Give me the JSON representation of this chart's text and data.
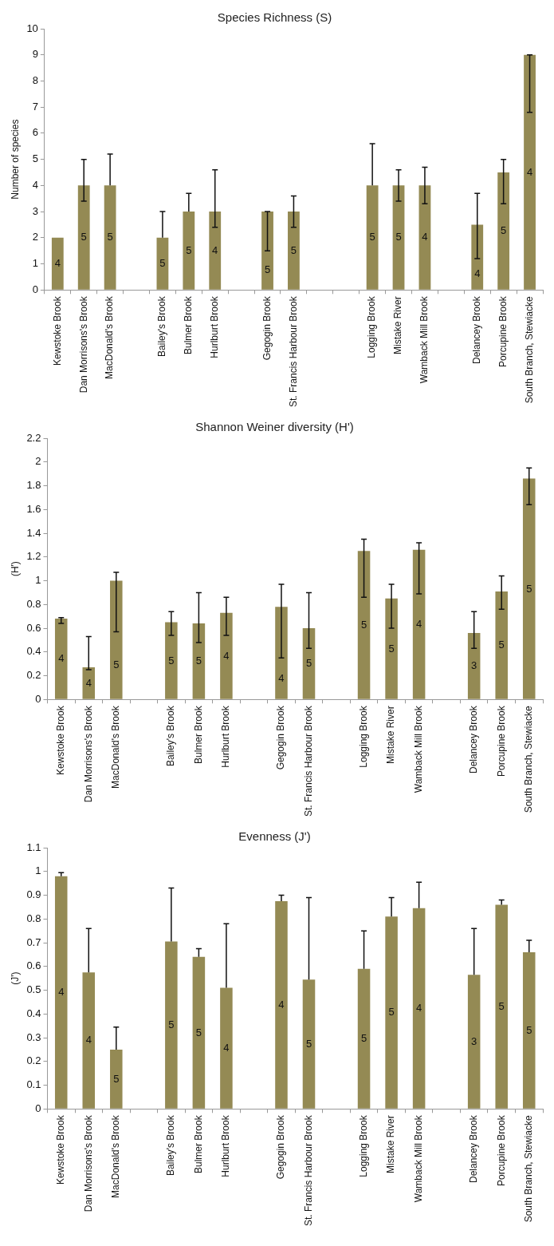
{
  "chart_data": [
    {
      "type": "bar",
      "title": "Species Richness (S)",
      "ylabel": "Number of species",
      "categories": [
        "Kewstoke Brook",
        "Dan Morrisons's Brook",
        "MacDonald's Brook",
        null,
        "Bailey's Brook",
        "Bulmer Brook",
        "Hurlburt Brook",
        null,
        "Gegogin Brook",
        "St. Francis Harbour Brook",
        null,
        null,
        "Logging Brook",
        "Mistake River",
        "Wamback Mill Brook",
        null,
        "Delancey Brook",
        "Porcupine Brook",
        "South Branch, Stewiacke"
      ],
      "values": [
        2,
        4,
        4,
        null,
        2,
        3,
        3,
        null,
        3,
        3,
        null,
        null,
        4,
        4,
        4,
        null,
        2.5,
        4.5,
        9
      ],
      "errors": [
        null,
        [
          3.4,
          5
        ],
        [
          4,
          5.2
        ],
        null,
        [
          2,
          3
        ],
        [
          3,
          3.7
        ],
        [
          2.4,
          4.6
        ],
        null,
        [
          1.5,
          3
        ],
        [
          2.4,
          3.6
        ],
        null,
        null,
        [
          4,
          5.6
        ],
        [
          3.4,
          4.6
        ],
        [
          3.3,
          4.7
        ],
        null,
        [
          1.2,
          3.7
        ],
        [
          3.3,
          5
        ],
        [
          6.8,
          9
        ]
      ],
      "annotations": [
        "4",
        "5",
        "5",
        "5",
        "5",
        "4",
        "5",
        "5",
        "5",
        "5",
        "4",
        "4",
        "5",
        "4"
      ],
      "color": "#948a54",
      "ylim": [
        0,
        10
      ],
      "yticks": [
        0,
        1,
        2,
        3,
        4,
        5,
        6,
        7,
        8,
        9,
        10
      ]
    },
    {
      "type": "bar",
      "title": "Shannon Weiner diversity (H')",
      "ylabel": "(H')",
      "categories": [
        "Kewstoke Brook",
        "Dan Morrisons's Brook",
        "MacDonald's Brook",
        null,
        "Bailey's Brook",
        "Bulmer Brook",
        "Hurlburt Brook",
        null,
        "Gegogin Brook",
        "St. Francis Harbour Brook",
        null,
        "Logging Brook",
        "Mistake River",
        "Wamback Mill Brook",
        null,
        "Delancey Brook",
        "Porcupine Brook",
        "South Branch, Stewiacke"
      ],
      "values": [
        0.68,
        0.27,
        1.0,
        null,
        0.65,
        0.64,
        0.73,
        null,
        0.78,
        0.6,
        null,
        1.25,
        0.85,
        1.26,
        null,
        0.56,
        0.91,
        1.86
      ],
      "errors": [
        [
          0.64,
          0.69
        ],
        [
          0.25,
          0.53
        ],
        [
          0.57,
          1.07
        ],
        null,
        [
          0.54,
          0.74
        ],
        [
          0.48,
          0.9
        ],
        [
          0.54,
          0.86
        ],
        null,
        [
          0.35,
          0.97
        ],
        [
          0.43,
          0.9
        ],
        null,
        [
          0.86,
          1.35
        ],
        [
          0.6,
          0.97
        ],
        [
          0.89,
          1.32
        ],
        null,
        [
          0.43,
          0.74
        ],
        [
          0.76,
          1.04
        ],
        [
          1.64,
          1.95
        ]
      ],
      "annotations": [
        "4",
        "4",
        "5",
        "5",
        "5",
        "4",
        "4",
        "5",
        "5",
        "5",
        "4",
        "3",
        "5",
        "5"
      ],
      "color": "#948a54",
      "ylim": [
        0,
        2.2
      ],
      "yticks": [
        0,
        0.2,
        0.4,
        0.6,
        0.8,
        1,
        1.2,
        1.4,
        1.6,
        1.8,
        2,
        2.2
      ]
    },
    {
      "type": "bar",
      "title": "Evenness (J')",
      "ylabel": "(J')",
      "categories": [
        "Kewstoke Brook",
        "Dan Morrisons's Brook",
        "MacDonald's Brook",
        null,
        "Bailey's Brook",
        "Bulmer Brook",
        "Hurlburt Brook",
        null,
        "Gegogin Brook",
        "St. Francis Harbour Brook",
        null,
        "Logging Brook",
        "Mistake River",
        "Wamback Mill Brook",
        null,
        "Delancey Brook",
        "Porcupine Brook",
        "South Branch, Stewiacke"
      ],
      "values": [
        0.98,
        0.575,
        0.25,
        null,
        0.705,
        0.64,
        0.51,
        null,
        0.875,
        0.545,
        null,
        0.59,
        0.81,
        0.845,
        null,
        0.565,
        0.86,
        0.66
      ],
      "errors": [
        [
          0.98,
          0.995
        ],
        [
          0.575,
          0.76
        ],
        [
          0.25,
          0.345
        ],
        null,
        [
          0.705,
          0.93
        ],
        [
          0.64,
          0.675
        ],
        [
          0.51,
          0.78
        ],
        null,
        [
          0.875,
          0.9
        ],
        [
          0.545,
          0.89
        ],
        null,
        [
          0.59,
          0.75
        ],
        [
          0.81,
          0.89
        ],
        [
          0.845,
          0.955
        ],
        null,
        [
          0.565,
          0.76
        ],
        [
          0.86,
          0.88
        ],
        [
          0.66,
          0.71
        ]
      ],
      "annotations": [
        "4",
        "4",
        "5",
        "5",
        "5",
        "4",
        "4",
        "5",
        "5",
        "5",
        "4",
        "3",
        "5",
        "5"
      ],
      "color": "#948a54",
      "ylim": [
        0,
        1.1
      ],
      "yticks": [
        0,
        0.1,
        0.2,
        0.3,
        0.4,
        0.5,
        0.6,
        0.7,
        0.8,
        0.9,
        1,
        1.1
      ]
    }
  ]
}
